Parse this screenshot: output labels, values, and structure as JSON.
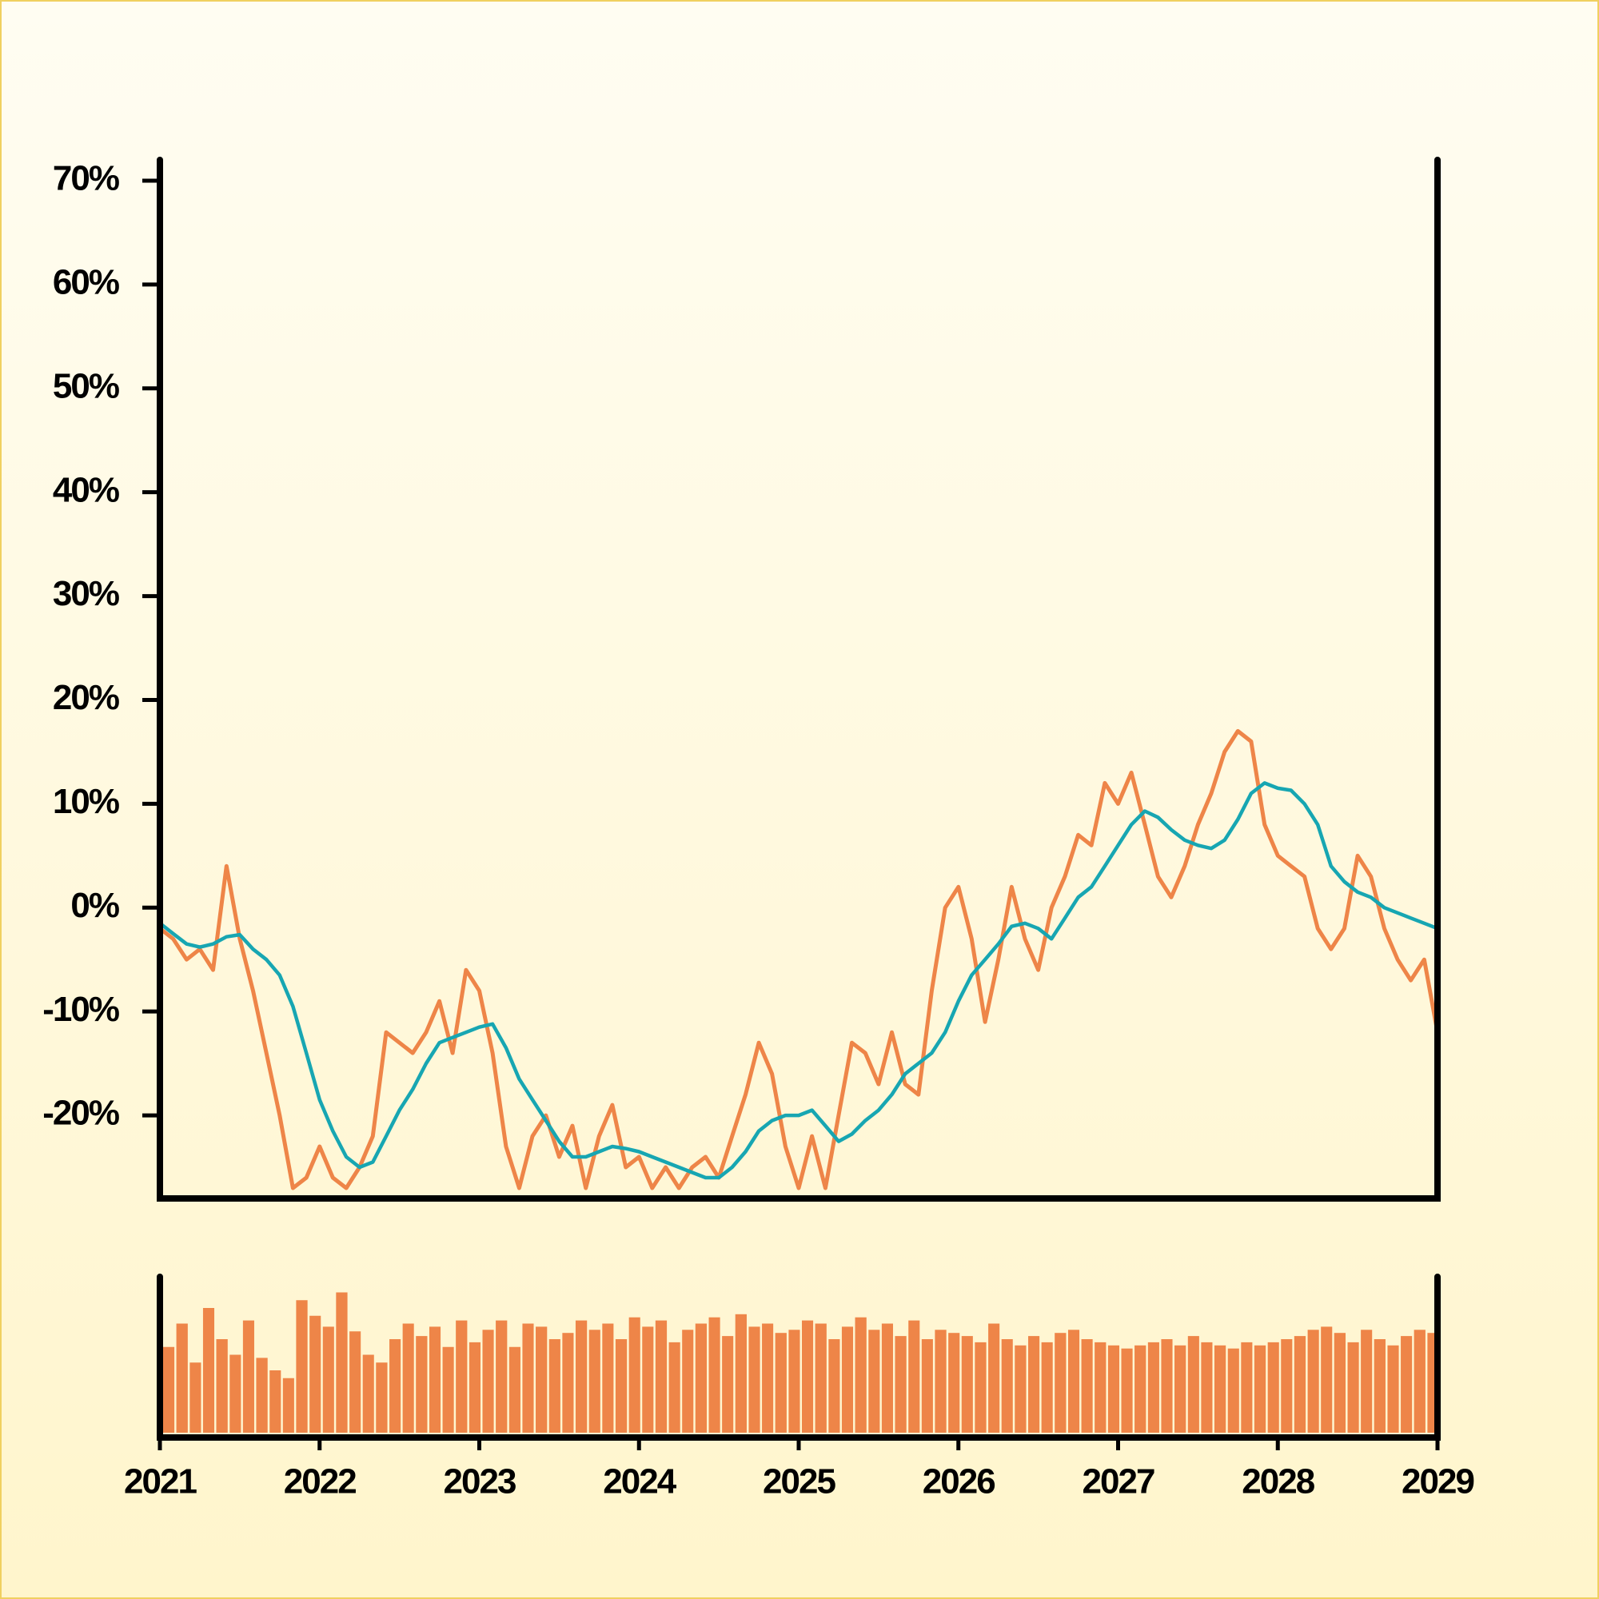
{
  "chart_data": [
    {
      "type": "line",
      "x": [
        2021,
        2021.083,
        2021.167,
        2021.25,
        2021.333,
        2021.417,
        2021.5,
        2021.583,
        2021.667,
        2021.75,
        2021.833,
        2021.917,
        2022,
        2022.083,
        2022.167,
        2022.25,
        2022.333,
        2022.417,
        2022.5,
        2022.583,
        2022.667,
        2022.75,
        2022.833,
        2022.917,
        2023,
        2023.083,
        2023.167,
        2023.25,
        2023.333,
        2023.417,
        2023.5,
        2023.583,
        2023.667,
        2023.75,
        2023.833,
        2023.917,
        2024,
        2024.083,
        2024.167,
        2024.25,
        2024.333,
        2024.417,
        2024.5,
        2024.583,
        2024.667,
        2024.75,
        2024.833,
        2024.917,
        2025,
        2025.083,
        2025.167,
        2025.25,
        2025.333,
        2025.417,
        2025.5,
        2025.583,
        2025.667,
        2025.75,
        2025.833,
        2025.917,
        2026,
        2026.083,
        2026.167,
        2026.25,
        2026.333,
        2026.417,
        2026.5,
        2026.583,
        2026.667,
        2026.75,
        2026.833,
        2026.917,
        2027,
        2027.083,
        2027.167,
        2027.25,
        2027.333,
        2027.417,
        2027.5,
        2027.583,
        2027.667,
        2027.75,
        2027.833,
        2027.917,
        2028,
        2028.083,
        2028.167,
        2028.25,
        2028.333,
        2028.417,
        2028.5,
        2028.583,
        2028.667,
        2028.75,
        2028.833,
        2028.917,
        2029
      ],
      "series": [
        {
          "color": "#ee8548",
          "values": [
            -2,
            -3,
            -5,
            -4,
            -6,
            4,
            -3,
            -8,
            -14,
            -20,
            -27,
            -26,
            -23,
            -26,
            -27,
            -25,
            -22,
            -12,
            -13,
            -14,
            -12,
            -9,
            -14,
            -6,
            -8,
            -14,
            -23,
            -27,
            -22,
            -20,
            -24,
            -21,
            -27,
            -22,
            -19,
            -25,
            -24,
            -27,
            -25,
            -27,
            -25,
            -24,
            -26,
            -22,
            -18,
            -13,
            -16,
            -23,
            -27,
            -22,
            -27,
            -20,
            -13,
            -14,
            -17,
            -12,
            -17,
            -18,
            -8,
            0,
            2,
            -3,
            -11,
            -5,
            2,
            -3,
            -6,
            0,
            3,
            7,
            6,
            12,
            10,
            13,
            8,
            3,
            1,
            4,
            8,
            11,
            15,
            17,
            16,
            8,
            5,
            4,
            3,
            -2,
            -4,
            -2,
            5,
            3,
            -2,
            -5,
            -7,
            -5,
            -12
          ]
        },
        {
          "color": "#17a6b2",
          "values": [
            -1.5,
            -2.5,
            -3.5,
            -3.8,
            -3.5,
            -2.8,
            -2.6,
            -4,
            -5,
            -6.5,
            -9.5,
            -14,
            -18.5,
            -21.5,
            -24,
            -25,
            -24.5,
            -22,
            -19.5,
            -17.5,
            -15,
            -13,
            -12.5,
            -12,
            -11.5,
            -11.2,
            -13.5,
            -16.5,
            -18.5,
            -20.5,
            -22.5,
            -24,
            -24,
            -23.5,
            -23,
            -23.2,
            -23.5,
            -24,
            -24.5,
            -25,
            -25.5,
            -26,
            -26,
            -25,
            -23.5,
            -21.5,
            -20.5,
            -20,
            -20,
            -19.5,
            -21,
            -22.5,
            -21.8,
            -20.5,
            -19.5,
            -18,
            -16,
            -15,
            -14,
            -12,
            -9,
            -6.5,
            -5,
            -3.5,
            -1.8,
            -1.5,
            -2,
            -3,
            -1,
            1,
            2,
            4,
            6,
            8,
            9.3,
            8.7,
            7.5,
            6.5,
            6,
            5.7,
            6.5,
            8.5,
            11,
            12,
            11.5,
            11.3,
            10,
            8,
            4,
            2.5,
            1.5,
            1,
            0,
            -0.5,
            -1,
            -1.5,
            -2
          ]
        }
      ],
      "xlim": [
        2021,
        2029
      ],
      "ylim": [
        -28,
        72
      ],
      "yticks": [
        {
          "value": -20,
          "label": "-20%"
        },
        {
          "value": -10,
          "label": "-10%"
        },
        {
          "value": 0,
          "label": "0%"
        },
        {
          "value": 10,
          "label": "10%"
        },
        {
          "value": 20,
          "label": "20%"
        },
        {
          "value": 30,
          "label": "30%"
        },
        {
          "value": 40,
          "label": "40%"
        },
        {
          "value": 50,
          "label": "50%"
        },
        {
          "value": 60,
          "label": "60%"
        },
        {
          "value": 70,
          "label": "70%"
        }
      ]
    },
    {
      "type": "bar",
      "color": "#ee8548",
      "x": [
        2021,
        2021.083,
        2021.167,
        2021.25,
        2021.333,
        2021.417,
        2021.5,
        2021.583,
        2021.667,
        2021.75,
        2021.833,
        2021.917,
        2022,
        2022.083,
        2022.167,
        2022.25,
        2022.333,
        2022.417,
        2022.5,
        2022.583,
        2022.667,
        2022.75,
        2022.833,
        2022.917,
        2023,
        2023.083,
        2023.167,
        2023.25,
        2023.333,
        2023.417,
        2023.5,
        2023.583,
        2023.667,
        2023.75,
        2023.833,
        2023.917,
        2024,
        2024.083,
        2024.167,
        2024.25,
        2024.333,
        2024.417,
        2024.5,
        2024.583,
        2024.667,
        2024.75,
        2024.833,
        2024.917,
        2025,
        2025.083,
        2025.167,
        2025.25,
        2025.333,
        2025.417,
        2025.5,
        2025.583,
        2025.667,
        2025.75,
        2025.833,
        2025.917,
        2026,
        2026.083,
        2026.167,
        2026.25,
        2026.333,
        2026.417,
        2026.5,
        2026.583,
        2026.667,
        2026.75,
        2026.833,
        2026.917,
        2027,
        2027.083,
        2027.167,
        2027.25,
        2027.333,
        2027.417,
        2027.5,
        2027.583,
        2027.667,
        2027.75,
        2027.833,
        2027.917,
        2028,
        2028.083,
        2028.167,
        2028.25,
        2028.333,
        2028.417,
        2028.5,
        2028.583,
        2028.667,
        2028.75,
        2028.833,
        2028.917
      ],
      "values": [
        55,
        70,
        45,
        80,
        60,
        50,
        72,
        48,
        40,
        35,
        85,
        75,
        68,
        90,
        65,
        50,
        45,
        60,
        70,
        62,
        68,
        55,
        72,
        58,
        66,
        72,
        55,
        70,
        68,
        60,
        64,
        72,
        66,
        70,
        60,
        74,
        68,
        72,
        58,
        66,
        70,
        74,
        62,
        76,
        68,
        70,
        64,
        66,
        72,
        70,
        60,
        68,
        74,
        66,
        70,
        62,
        72,
        60,
        66,
        64,
        62,
        58,
        70,
        60,
        56,
        62,
        58,
        64,
        66,
        60,
        58,
        56,
        54,
        56,
        58,
        60,
        56,
        62,
        58,
        56,
        54,
        58,
        56,
        58,
        60,
        62,
        66,
        68,
        64,
        58,
        66,
        60,
        56,
        62,
        66,
        64
      ],
      "xlim": [
        2021,
        2029
      ],
      "ylim": [
        0,
        100
      ],
      "xticks": [
        2021,
        2022,
        2023,
        2024,
        2025,
        2026,
        2027,
        2028,
        2029
      ]
    }
  ]
}
